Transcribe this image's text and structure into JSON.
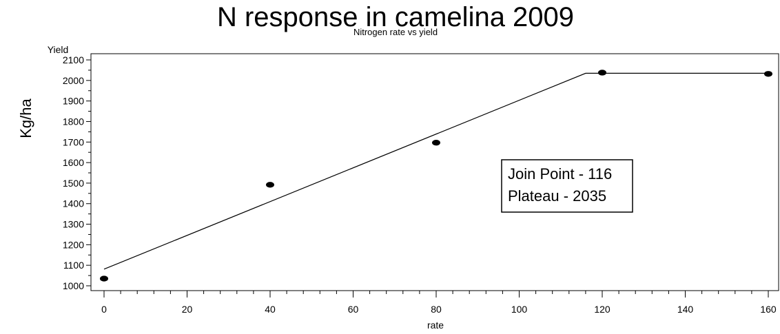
{
  "chart_data": {
    "type": "line",
    "title": "N response in camelina 2009",
    "subtitle": "Nitrogen rate vs yield",
    "xlabel": "rate",
    "ylabel": "Kg/ha",
    "y_axis_caption": "Yield",
    "xlim": [
      -3,
      163
    ],
    "ylim": [
      990,
      2100
    ],
    "x_ticks": [
      0,
      20,
      40,
      60,
      80,
      100,
      120,
      140,
      160
    ],
    "y_ticks": [
      1000,
      1100,
      1200,
      1300,
      1400,
      1500,
      1600,
      1700,
      1800,
      1900,
      2000,
      2100
    ],
    "grid": false,
    "series": [
      {
        "type": "scatter",
        "x": [
          0,
          40,
          80,
          120,
          160
        ],
        "y": [
          1035,
          1492,
          1697,
          2038,
          2032
        ]
      },
      {
        "type": "line",
        "x": [
          0,
          116,
          160
        ],
        "y": [
          1081,
          2035,
          2035
        ]
      }
    ],
    "annotation": {
      "lines": [
        "Join Point - 116",
        "Plateau - 2035"
      ]
    }
  }
}
